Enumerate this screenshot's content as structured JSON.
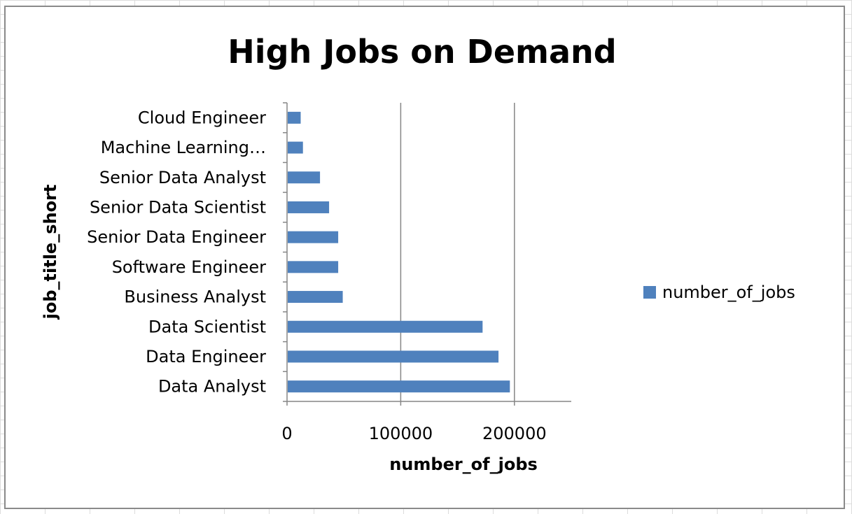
{
  "chart_data": {
    "type": "bar",
    "orientation": "horizontal",
    "title": "High Jobs on Demand",
    "xlabel": "number_of_jobs",
    "ylabel": "job_title_short",
    "categories": [
      "Data Analyst",
      "Data Engineer",
      "Data Scientist",
      "Business Analyst",
      "Software Engineer",
      "Senior Data Engineer",
      "Senior Data Scientist",
      "Senior Data Analyst",
      "Machine Learning…",
      "Cloud Engineer"
    ],
    "series": [
      {
        "name": "number_of_jobs",
        "values": [
          196000,
          186000,
          172000,
          49000,
          45000,
          45000,
          37000,
          29000,
          14000,
          12000
        ],
        "color": "#4f81bd"
      }
    ],
    "xlim": [
      0,
      250000
    ],
    "xticks": [
      0,
      100000,
      200000
    ],
    "xtick_labels": [
      "0",
      "100000",
      "200000"
    ],
    "grid": "vertical major gridlines",
    "legend": "right"
  }
}
